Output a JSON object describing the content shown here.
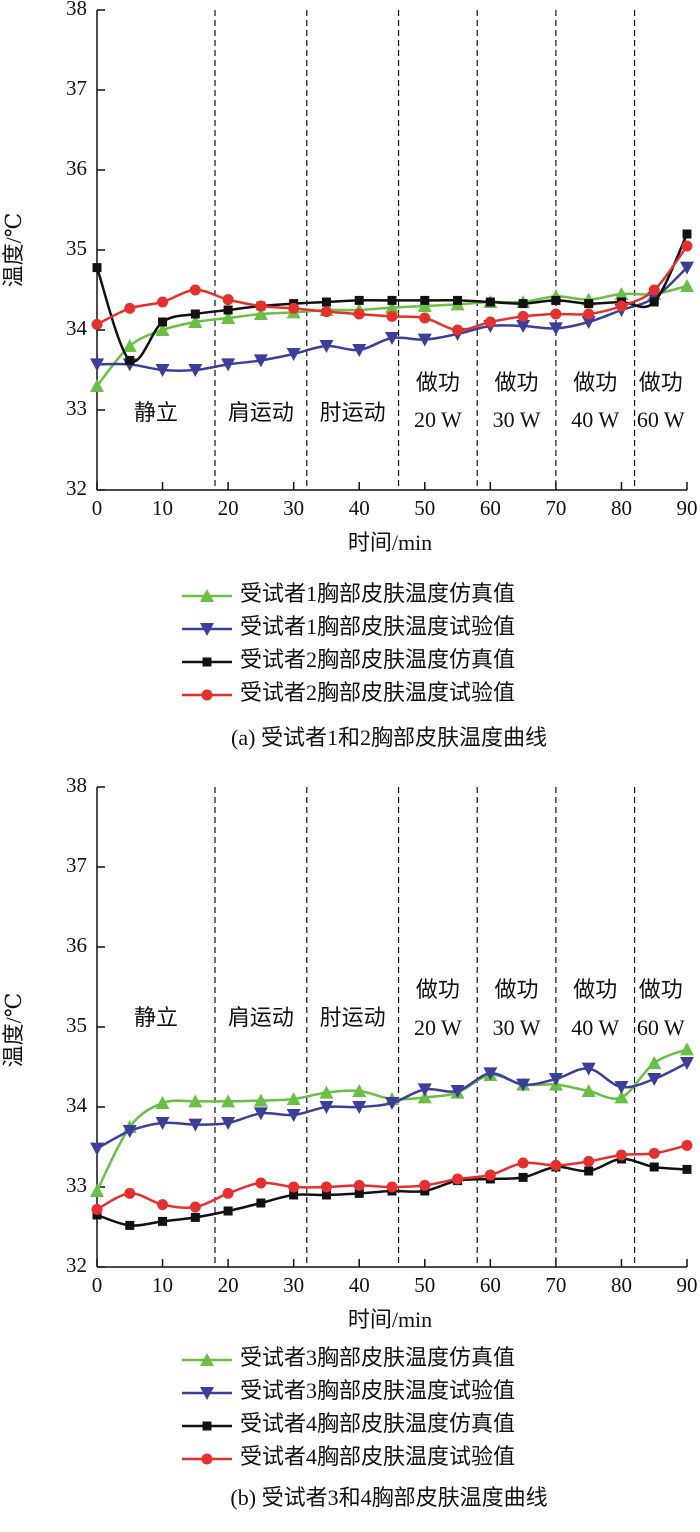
{
  "chart_data": [
    {
      "type": "line",
      "caption": "(a) 受试者1和2胸部皮肤温度曲线",
      "xlabel": "时间/min",
      "ylabel": "温度/℃",
      "xlim": [
        0,
        90
      ],
      "ylim": [
        32,
        38
      ],
      "xticks": [
        0,
        10,
        20,
        30,
        40,
        50,
        60,
        70,
        80,
        90
      ],
      "yticks": [
        32,
        33,
        34,
        35,
        36,
        37,
        38
      ],
      "phase_boundaries": [
        18,
        32,
        46,
        58,
        70,
        82
      ],
      "phase_labels": [
        [
          "静立"
        ],
        [
          "肩运动"
        ],
        [
          "肘运动"
        ],
        [
          "做功",
          "20 W"
        ],
        [
          "做功",
          "30 W"
        ],
        [
          "做功",
          "40 W"
        ],
        [
          "做功",
          "60 W"
        ]
      ],
      "x": [
        0,
        5,
        10,
        15,
        20,
        25,
        30,
        35,
        40,
        45,
        50,
        55,
        60,
        65,
        70,
        75,
        80,
        85,
        90
      ],
      "series": [
        {
          "name": "受试者1胸部皮肤温度仿真值",
          "color": "#6abf45",
          "marker": "triangle-up",
          "values": [
            33.3,
            33.8,
            34.0,
            34.1,
            34.15,
            34.2,
            34.22,
            34.25,
            34.25,
            34.28,
            34.3,
            34.32,
            34.35,
            34.35,
            34.42,
            34.38,
            34.45,
            34.45,
            34.55
          ]
        },
        {
          "name": "受试者1胸部皮肤温度试验值",
          "color": "#3b3f9a",
          "marker": "triangle-down",
          "values": [
            33.57,
            33.57,
            33.5,
            33.5,
            33.57,
            33.62,
            33.7,
            33.8,
            33.75,
            33.9,
            33.88,
            33.95,
            34.05,
            34.05,
            34.02,
            34.1,
            34.25,
            34.4,
            34.78
          ]
        },
        {
          "name": "受试者2胸部皮肤温度仿真值",
          "color": "#111111",
          "marker": "square",
          "values": [
            34.78,
            33.62,
            34.1,
            34.2,
            34.25,
            34.3,
            34.33,
            34.35,
            34.37,
            34.37,
            34.37,
            34.37,
            34.35,
            34.33,
            34.37,
            34.33,
            34.35,
            34.35,
            35.2
          ]
        },
        {
          "name": "受试者2胸部皮肤温度试验值",
          "color": "#e53030",
          "marker": "circle",
          "values": [
            34.07,
            34.27,
            34.35,
            34.5,
            34.38,
            34.3,
            34.27,
            34.23,
            34.2,
            34.17,
            34.15,
            34.0,
            34.1,
            34.17,
            34.2,
            34.2,
            34.3,
            34.5,
            35.05
          ]
        }
      ]
    },
    {
      "type": "line",
      "caption": "(b) 受试者3和4胸部皮肤温度曲线",
      "xlabel": "时间/min",
      "ylabel": "温度/℃",
      "xlim": [
        0,
        90
      ],
      "ylim": [
        32,
        38
      ],
      "xticks": [
        0,
        10,
        20,
        30,
        40,
        50,
        60,
        70,
        80,
        90
      ],
      "yticks": [
        32,
        33,
        34,
        35,
        36,
        37,
        38
      ],
      "phase_boundaries": [
        18,
        32,
        46,
        58,
        70,
        82
      ],
      "phase_labels": [
        [
          "静立"
        ],
        [
          "肩运动"
        ],
        [
          "肘运动"
        ],
        [
          "做功",
          "20 W"
        ],
        [
          "做功",
          "30 W"
        ],
        [
          "做功",
          "40 W"
        ],
        [
          "做功",
          "60 W"
        ]
      ],
      "x": [
        0,
        5,
        10,
        15,
        20,
        25,
        30,
        35,
        40,
        45,
        50,
        55,
        60,
        65,
        70,
        75,
        80,
        85,
        90
      ],
      "series": [
        {
          "name": "受试者3胸部皮肤温度仿真值",
          "color": "#6abf45",
          "marker": "triangle-up",
          "values": [
            32.95,
            33.75,
            34.05,
            34.07,
            34.07,
            34.08,
            34.1,
            34.18,
            34.2,
            34.1,
            34.12,
            34.18,
            34.4,
            34.28,
            34.28,
            34.2,
            34.12,
            34.55,
            34.72
          ]
        },
        {
          "name": "受试者3胸部皮肤温度试验值",
          "color": "#3b3f9a",
          "marker": "triangle-down",
          "values": [
            33.48,
            33.7,
            33.8,
            33.78,
            33.8,
            33.92,
            33.9,
            34.0,
            34.0,
            34.05,
            34.22,
            34.2,
            34.42,
            34.28,
            34.35,
            34.48,
            34.25,
            34.35,
            34.55
          ]
        },
        {
          "name": "受试者4胸部皮肤温度仿真值",
          "color": "#111111",
          "marker": "square",
          "values": [
            32.65,
            32.52,
            32.57,
            32.62,
            32.7,
            32.8,
            32.9,
            32.9,
            32.92,
            32.95,
            32.95,
            33.08,
            33.1,
            33.12,
            33.25,
            33.2,
            33.35,
            33.25,
            33.22
          ]
        },
        {
          "name": "受试者4胸部皮肤温度试验值",
          "color": "#e53030",
          "marker": "circle",
          "values": [
            32.72,
            32.92,
            32.78,
            32.75,
            32.92,
            33.05,
            33.0,
            33.0,
            33.02,
            33.0,
            33.02,
            33.1,
            33.15,
            33.3,
            33.27,
            33.32,
            33.4,
            33.42,
            33.52
          ]
        }
      ]
    }
  ]
}
